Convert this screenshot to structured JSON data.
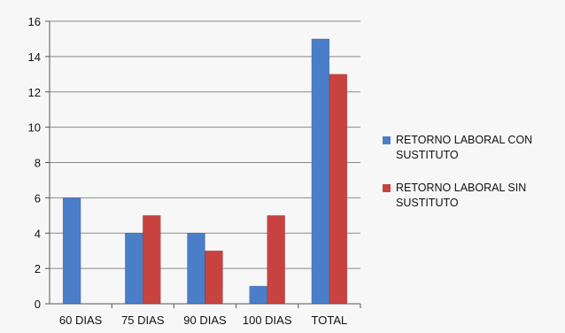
{
  "chart_data": {
    "type": "bar",
    "categories": [
      "60 DIAS",
      "75 DIAS",
      "90 DIAS",
      "100 DIAS",
      "TOTAL"
    ],
    "series": [
      {
        "name": "RETORNO LABORAL CON SUSTITUTO",
        "values": [
          6,
          4,
          4,
          1,
          15
        ],
        "color": "#4a7ec8"
      },
      {
        "name": "RETORNO LABORAL SIN SUSTITUTO",
        "values": [
          0,
          5,
          3,
          5,
          13
        ],
        "color": "#c8433f"
      }
    ],
    "ylim": [
      0,
      16
    ],
    "yticks": [
      0,
      2,
      4,
      6,
      8,
      10,
      12,
      14,
      16
    ],
    "grid": true,
    "legend_position": "right",
    "title": "",
    "xlabel": "",
    "ylabel": ""
  }
}
